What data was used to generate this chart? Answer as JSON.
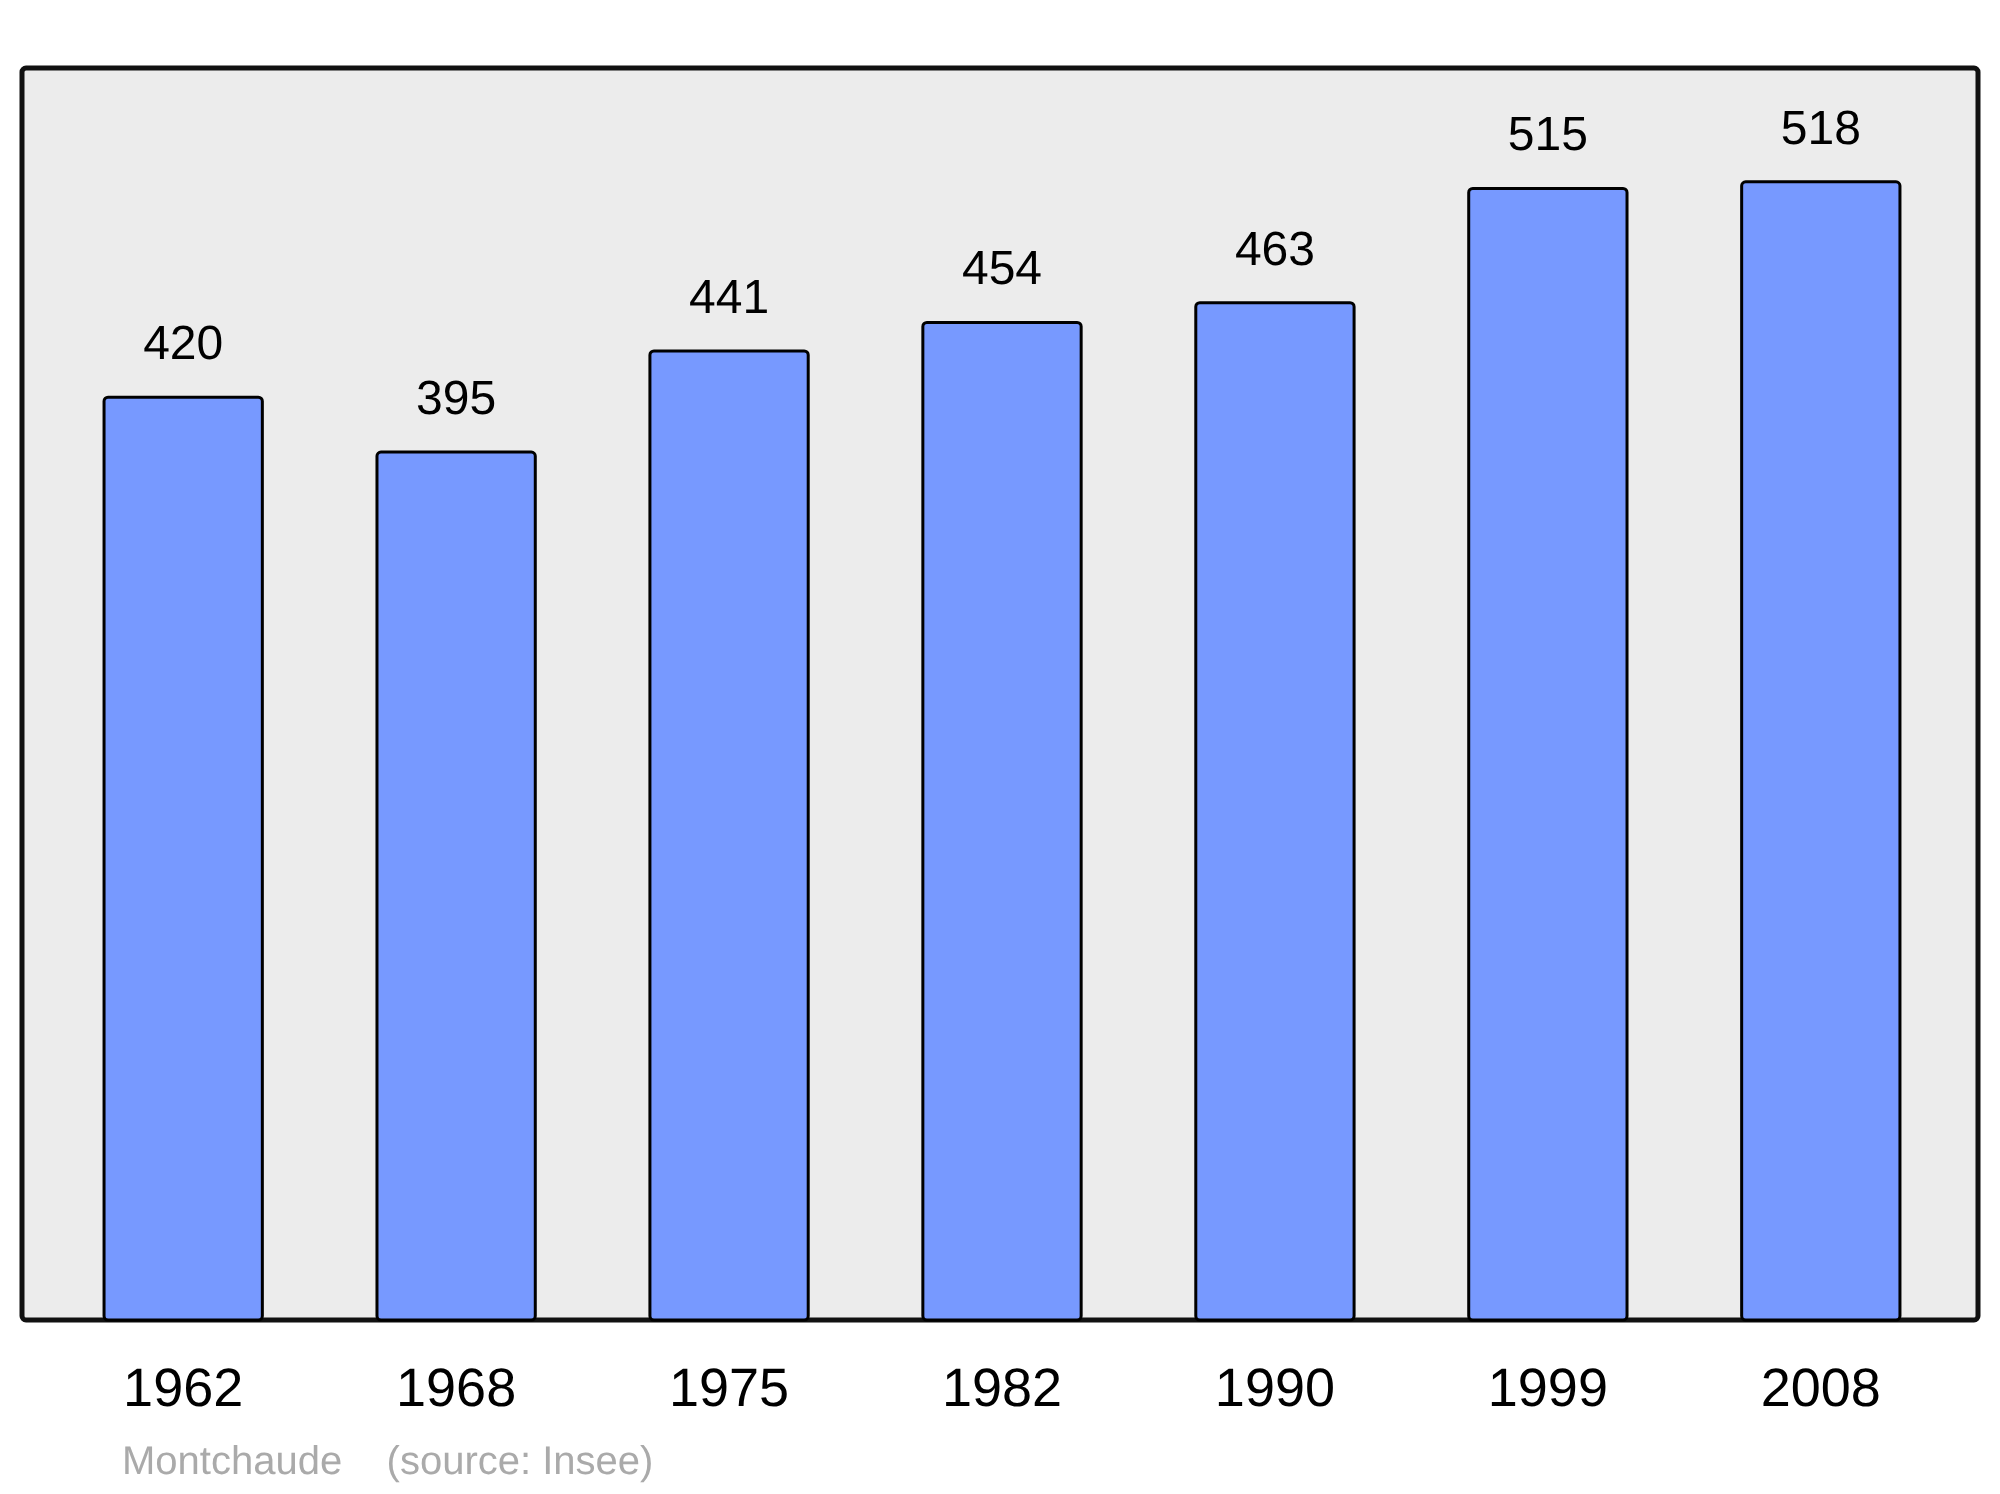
{
  "chart_data": {
    "type": "bar",
    "categories": [
      "1962",
      "1968",
      "1975",
      "1982",
      "1990",
      "1999",
      "2008"
    ],
    "values": [
      420,
      395,
      441,
      454,
      463,
      515,
      518
    ],
    "color": "#7799ff",
    "data_labels": true,
    "annotations": [
      "Montchaude    (source: Insee)"
    ]
  }
}
